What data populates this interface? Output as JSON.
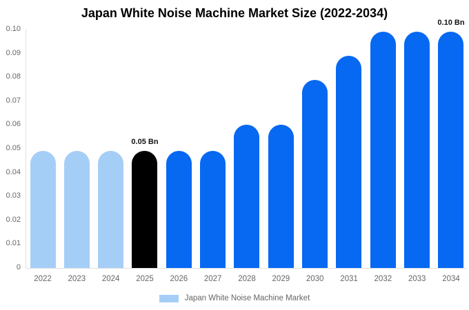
{
  "chart_data": {
    "type": "bar",
    "title": "Japan White Noise Machine Market Size (2022-2034)",
    "categories": [
      "2022",
      "2023",
      "2024",
      "2025",
      "2026",
      "2027",
      "2028",
      "2029",
      "2030",
      "2031",
      "2032",
      "2033",
      "2034"
    ],
    "values": [
      0.049,
      0.049,
      0.049,
      0.049,
      0.049,
      0.049,
      0.06,
      0.06,
      0.079,
      0.089,
      0.099,
      0.099,
      0.099
    ],
    "bar_colors": [
      "#A5CEF7",
      "#A5CEF7",
      "#A5CEF7",
      "#000000",
      "#0768F2",
      "#0768F2",
      "#0768F2",
      "#0768F2",
      "#0768F2",
      "#0768F2",
      "#0768F2",
      "#0768F2",
      "#0768F2"
    ],
    "xlabel": "",
    "ylabel": "",
    "ylim": [
      0,
      0.1
    ],
    "ytick_labels": [
      "0",
      "0.01",
      "0.02",
      "0.03",
      "0.04",
      "0.05",
      "0.06",
      "0.07",
      "0.08",
      "0.09",
      "0.10"
    ],
    "grid": false,
    "annotations": [
      {
        "category": "2025",
        "text": "0.05 Bn"
      },
      {
        "category": "2034",
        "text": "0.10 Bn"
      }
    ],
    "legend": {
      "label": "Japan White Noise Machine Market",
      "swatch_color": "#A5CEF7",
      "position": "bottom-center"
    },
    "colors": {
      "historical_bar": "#A5CEF7",
      "base_year_bar": "#000000",
      "forecast_bar": "#0768F2",
      "axis_line": "#E0E0E0",
      "tick_text": "#666666",
      "title_text": "#000000",
      "annotation_text": "#111111"
    }
  }
}
